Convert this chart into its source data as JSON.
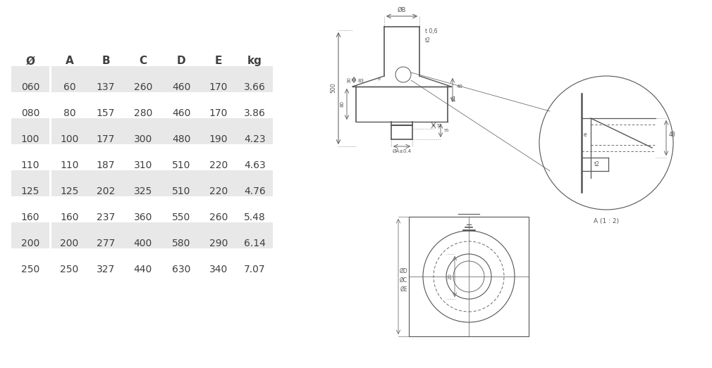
{
  "table_headers": [
    "Ø",
    "A",
    "B",
    "C",
    "D",
    "E",
    "kg"
  ],
  "table_rows": [
    [
      "060",
      "60",
      "137",
      "260",
      "460",
      "170",
      "3.66"
    ],
    [
      "080",
      "80",
      "157",
      "280",
      "460",
      "170",
      "3.86"
    ],
    [
      "100",
      "100",
      "177",
      "300",
      "480",
      "190",
      "4.23"
    ],
    [
      "110",
      "110",
      "187",
      "310",
      "510",
      "220",
      "4.63"
    ],
    [
      "125",
      "125",
      "202",
      "325",
      "510",
      "220",
      "4.76"
    ],
    [
      "160",
      "160",
      "237",
      "360",
      "550",
      "260",
      "5.48"
    ],
    [
      "200",
      "200",
      "277",
      "400",
      "580",
      "290",
      "6.14"
    ],
    [
      "250",
      "250",
      "327",
      "440",
      "630",
      "340",
      "7.07"
    ]
  ],
  "shaded_rows": [
    0,
    2,
    4,
    6
  ],
  "bg_color": "#ffffff",
  "table_bg": "#e8e8e8",
  "text_color": "#404040",
  "line_color": "#555555"
}
